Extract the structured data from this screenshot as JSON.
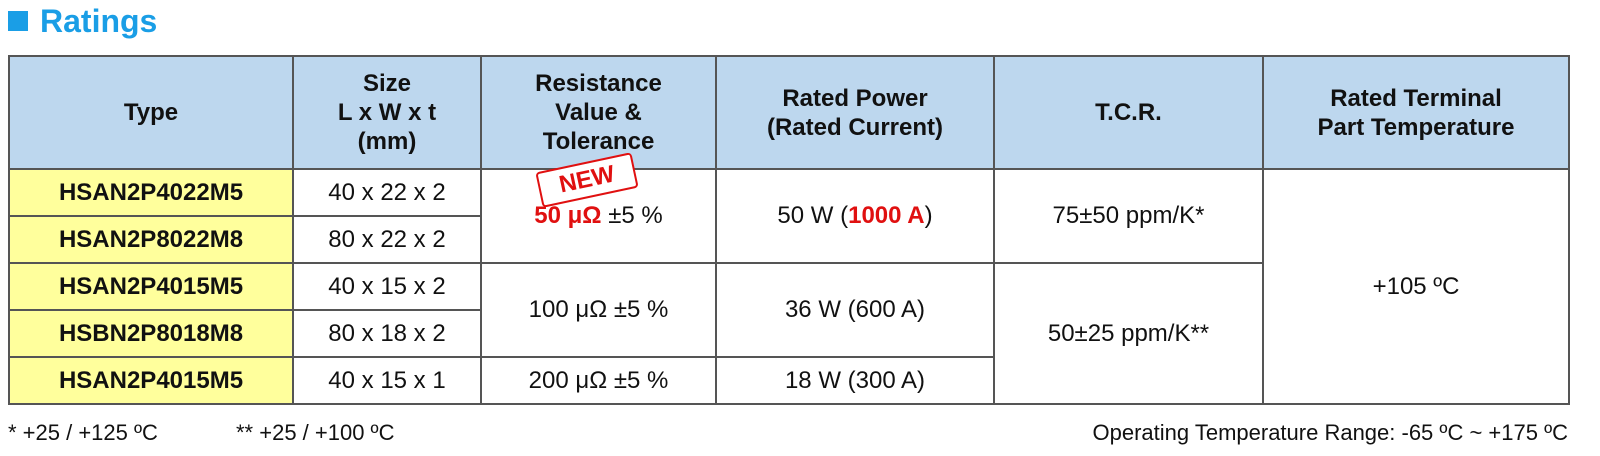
{
  "title": "Ratings",
  "table": {
    "header": [
      [
        "Type"
      ],
      [
        "Size",
        "L x W x t",
        "(mm)"
      ],
      [
        "Resistance",
        "Value &",
        "Tolerance"
      ],
      [
        "Rated Power",
        "(Rated Current)"
      ],
      [
        "T.C.R."
      ],
      [
        "Rated Terminal",
        "Part Temperature"
      ]
    ],
    "types": [
      "HSAN2P4022M5",
      "HSAN2P8022M8",
      "HSAN2P4015M5",
      "HSBN2P8018M8",
      "HSAN2P4015M5"
    ],
    "sizes": [
      "40 x 22 x 2",
      "80 x 22 x 2",
      "40 x 15 x 2",
      "80 x 18 x 2",
      "40 x 15 x 1"
    ],
    "resistance": [
      {
        "value": "50 μΩ",
        "tolerance": "±5 %"
      },
      {
        "value": "100 μΩ",
        "tolerance": "±5 %"
      },
      {
        "value": "200 μΩ",
        "tolerance": "±5 %"
      }
    ],
    "power": [
      {
        "power": "50 W",
        "current": "1000 A"
      },
      {
        "power": "36 W",
        "current": "600 A"
      },
      {
        "power": "18 W",
        "current": "300 A"
      }
    ],
    "tcr": [
      "75±50 ppm/K*",
      "50±25 ppm/K**"
    ],
    "temperature": "+105 ºC"
  },
  "badge": "NEW",
  "notes": [
    "* +25 / +125 ºC",
    "** +25 / +100 ºC"
  ],
  "operating_range": "Operating Temperature Range: -65 ºC ~ +175 ºC"
}
